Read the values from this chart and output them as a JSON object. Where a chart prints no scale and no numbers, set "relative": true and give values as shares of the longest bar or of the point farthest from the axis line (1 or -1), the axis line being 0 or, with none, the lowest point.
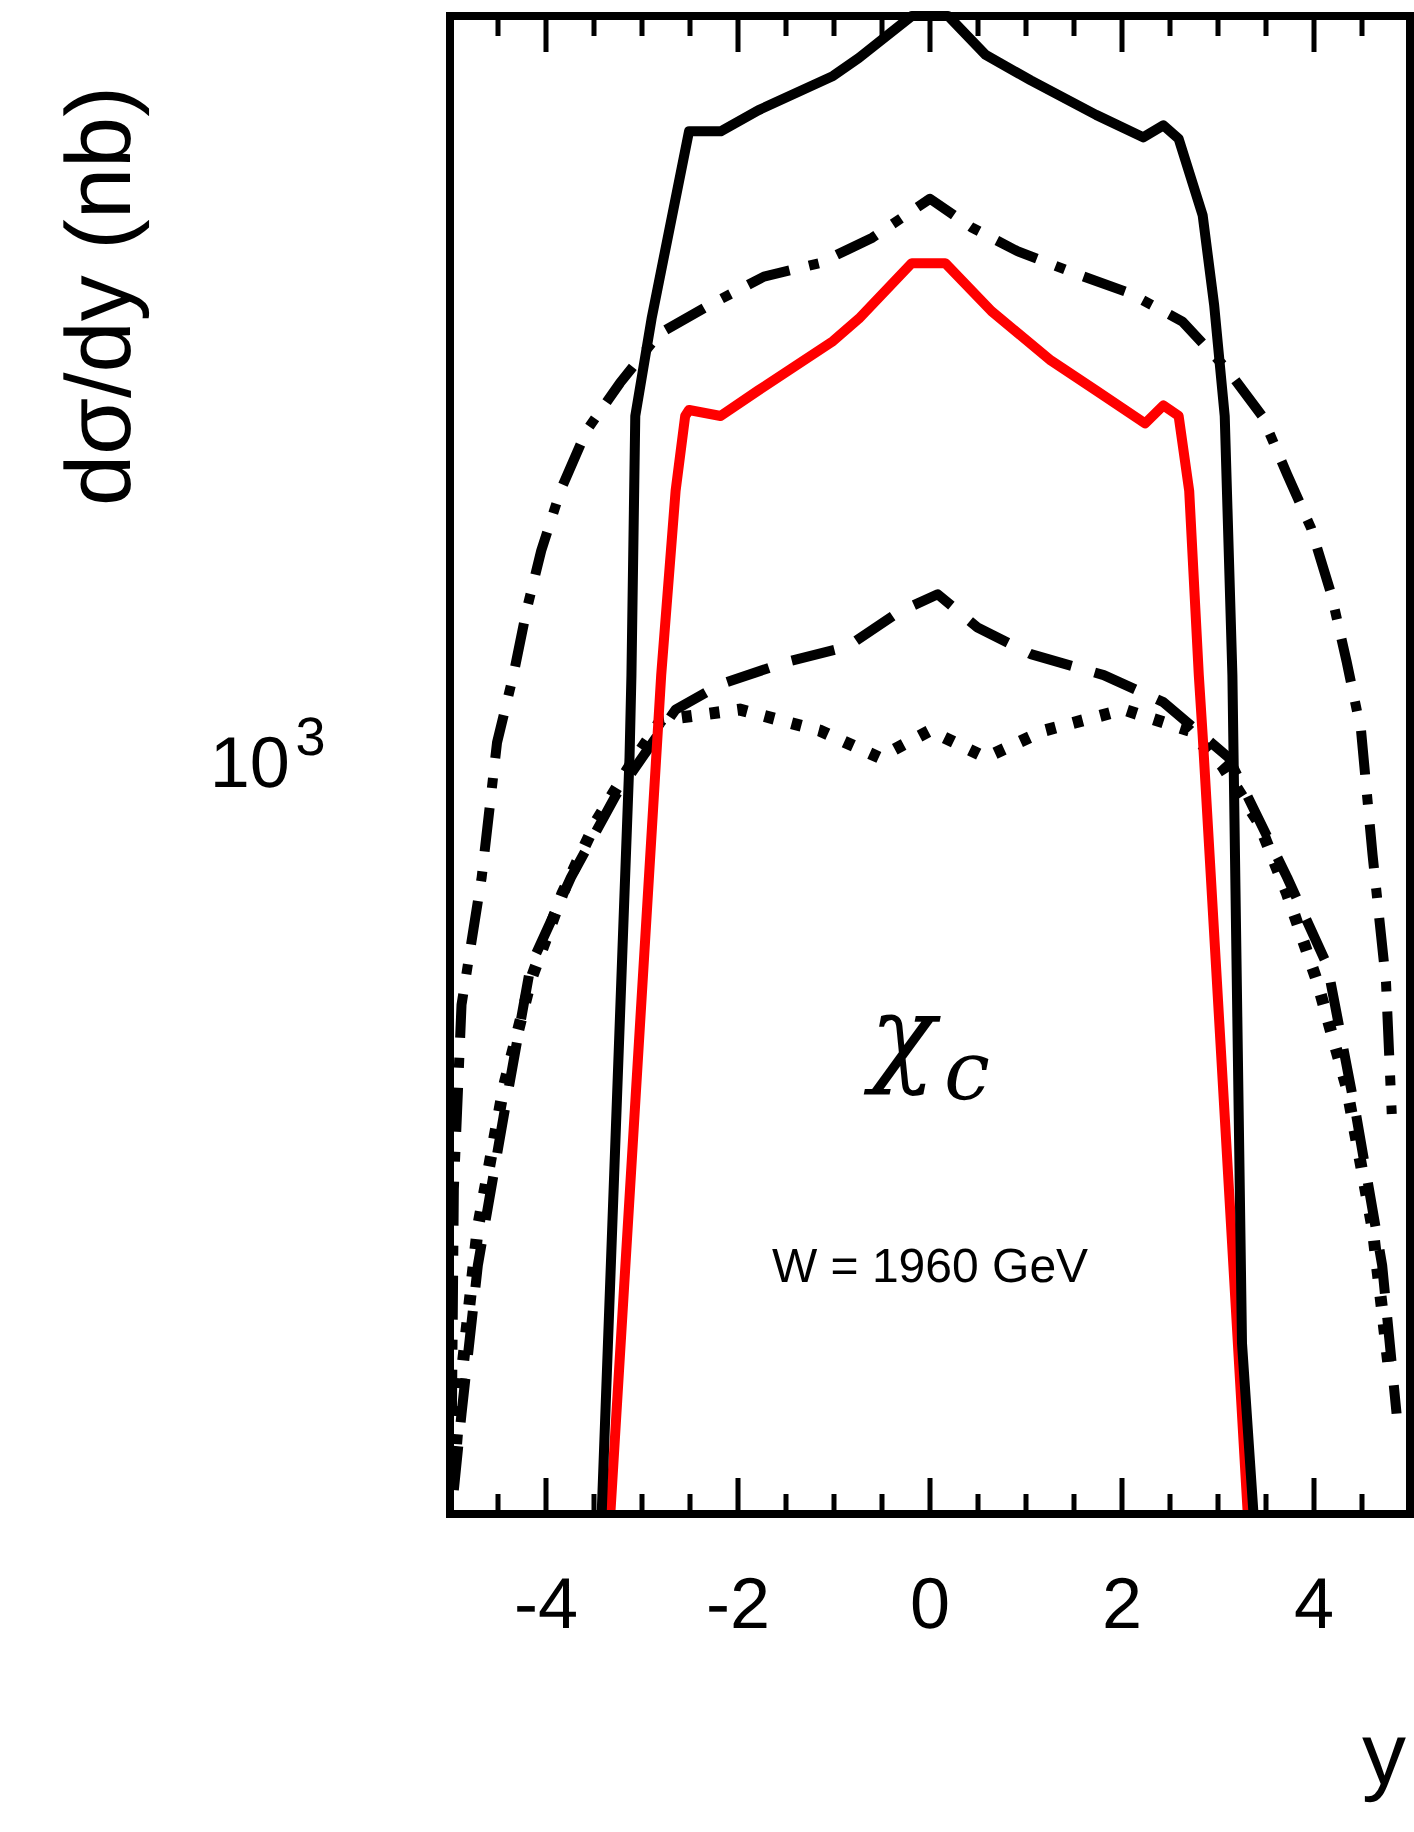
{
  "chart_data": {
    "type": "line",
    "xlabel": "y",
    "ylabel": "dσ/dy (nb)",
    "grid": false,
    "legend": false,
    "relative": true,
    "xlim": [
      -5,
      5
    ],
    "xticks": [
      {
        "value": -4.5,
        "label": null
      },
      -4,
      {
        "value": -3.5,
        "label": null
      },
      {
        "value": -3,
        "label": null
      },
      {
        "value": -2.5,
        "label": null
      },
      -2,
      {
        "value": -1.5,
        "label": null
      },
      {
        "value": -1,
        "label": null
      },
      {
        "value": -0.5,
        "label": null
      },
      0,
      {
        "value": 0.5,
        "label": null
      },
      {
        "value": 1,
        "label": null
      },
      {
        "value": 1.5,
        "label": null
      },
      2,
      {
        "value": 2.5,
        "label": null
      },
      {
        "value": 3,
        "label": null
      },
      {
        "value": 3.5,
        "label": null
      },
      4,
      {
        "value": 4.5,
        "label": null
      }
    ],
    "annotations": [
      "χ$_{c}$",
      "W = 1960 GeV",
      "10$^{3}$"
    ],
    "series": [
      {
        "color": "#000000",
        "line_style": "solid",
        "x": [
          -3.42,
          -3.13,
          -3.11,
          -3.07,
          -2.9,
          -2.76,
          -2.51,
          -2.18,
          -1.79,
          -1.01,
          -0.74,
          -0.19,
          0.19,
          0.58,
          1.05,
          1.73,
          2.22,
          2.43,
          2.59,
          2.84,
          2.96,
          3.07,
          3.15,
          3.25,
          3.37
        ],
        "values": [
          0,
          0.505,
          0.56,
          0.733,
          0.798,
          0.843,
          0.923,
          0.923,
          0.937,
          0.96,
          0.972,
          1,
          1,
          0.974,
          0.957,
          0.934,
          0.919,
          0.927,
          0.918,
          0.867,
          0.807,
          0.733,
          0.56,
          0.114,
          0
        ]
      },
      {
        "color": "#ff0000",
        "line_style": "solid",
        "x": [
          -3.33,
          -2.8,
          -2.65,
          -2.55,
          -2.51,
          -2.18,
          -1.79,
          -1.01,
          -0.74,
          -0.19,
          0.16,
          0.64,
          1.26,
          1.73,
          2.24,
          2.43,
          2.59,
          2.7,
          2.8,
          2.84,
          3.31
        ],
        "values": [
          0,
          0.56,
          0.683,
          0.733,
          0.737,
          0.733,
          0.75,
          0.783,
          0.798,
          0.835,
          0.835,
          0.803,
          0.77,
          0.75,
          0.728,
          0.74,
          0.733,
          0.683,
          0.56,
          0.52,
          0
        ]
      },
      {
        "color": "#000000",
        "line_style": "dashdot",
        "x": [
          -4.98,
          -4.96,
          -4.88,
          -4.67,
          -4.51,
          -4.34,
          -4.2,
          -4.05,
          -3.85,
          -3.58,
          -3.23,
          -2.82,
          -2.3,
          -1.73,
          -1.15,
          -0.6,
          0,
          0.43,
          0.91,
          1.52,
          2.08,
          2.63,
          3.11,
          3.46,
          3.72,
          3.97,
          4.18,
          4.34,
          4.49,
          4.61,
          4.75,
          4.81
        ],
        "values": [
          0.067,
          0.217,
          0.34,
          0.425,
          0.515,
          0.56,
          0.604,
          0.643,
          0.683,
          0.723,
          0.755,
          0.788,
          0.807,
          0.826,
          0.835,
          0.852,
          0.878,
          0.859,
          0.843,
          0.828,
          0.815,
          0.796,
          0.763,
          0.733,
          0.694,
          0.658,
          0.614,
          0.569,
          0.523,
          0.44,
          0.355,
          0.267
        ]
      },
      {
        "color": "#000000",
        "line_style": "dashed",
        "x": [
          -4.96,
          -4.88,
          -4.71,
          -4.44,
          -4.16,
          -3.74,
          -3.27,
          -2.65,
          -2.18,
          -1.48,
          -0.86,
          -0.33,
          0.08,
          0.49,
          1.05,
          1.81,
          2.43,
          3.11,
          3.72,
          4.14,
          4.44,
          4.71,
          4.86
        ],
        "values": [
          0.016,
          0.067,
          0.166,
          0.266,
          0.366,
          0.425,
          0.48,
          0.537,
          0.554,
          0.569,
          0.579,
          0.602,
          0.614,
          0.592,
          0.574,
          0.56,
          0.542,
          0.505,
          0.425,
          0.366,
          0.266,
          0.166,
          0.067
        ]
      },
      {
        "color": "#000000",
        "line_style": "dotted",
        "x": [
          -4.96,
          -4.88,
          -4.71,
          -4.44,
          -4.16,
          -3.83,
          -3.48,
          -3.13,
          -2.8,
          -1.98,
          -1.15,
          -0.53,
          0,
          0.58,
          1.19,
          2.02,
          2.7,
          3.05,
          3.42,
          3.72,
          4.03,
          4.34,
          4.61,
          4.79
        ],
        "values": [
          0.028,
          0.092,
          0.191,
          0.285,
          0.356,
          0.414,
          0.462,
          0.499,
          0.53,
          0.537,
          0.523,
          0.505,
          0.523,
          0.505,
          0.523,
          0.537,
          0.523,
          0.499,
          0.462,
          0.414,
          0.356,
          0.285,
          0.191,
          0.092
        ]
      }
    ]
  }
}
